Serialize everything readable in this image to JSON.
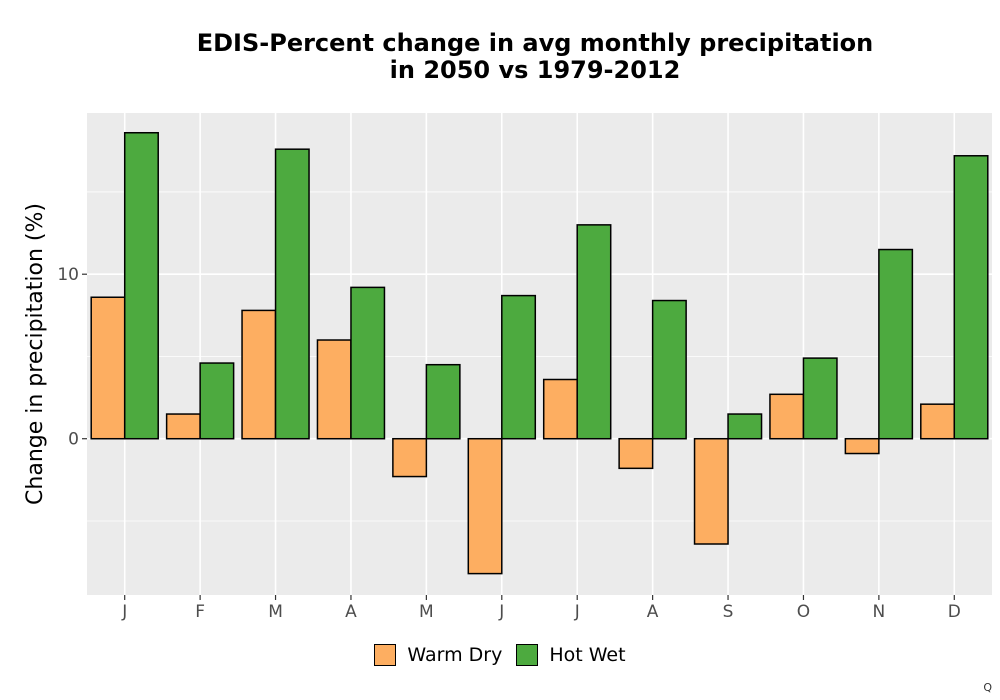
{
  "chart_data": {
    "type": "bar",
    "title_lines": [
      "EDIS-Percent change in avg monthly precipitation",
      "in 2050 vs 1979-2012"
    ],
    "xlabel": "",
    "ylabel": "Change in precipitation (%)",
    "categories": [
      "J",
      "F",
      "M",
      "A",
      "M",
      "J",
      "J",
      "A",
      "S",
      "O",
      "N",
      "D"
    ],
    "series": [
      {
        "name": "Warm Dry",
        "color": "#FDAE61",
        "values": [
          8.6,
          1.5,
          7.8,
          6.0,
          -2.3,
          -8.2,
          3.6,
          -1.8,
          -6.4,
          2.7,
          -0.9,
          2.1
        ]
      },
      {
        "name": "Hot Wet",
        "color": "#4DAA3F",
        "values": [
          18.6,
          4.6,
          17.6,
          9.2,
          4.5,
          8.7,
          13.0,
          8.4,
          1.5,
          4.9,
          11.5,
          17.2
        ]
      }
    ],
    "ylim": [
      -9.5,
      19.8
    ],
    "yticks": [
      0,
      10
    ],
    "grid": true,
    "panel_background": "#EBEBEB",
    "legend_position": "bottom"
  },
  "corner_mark": "Q"
}
